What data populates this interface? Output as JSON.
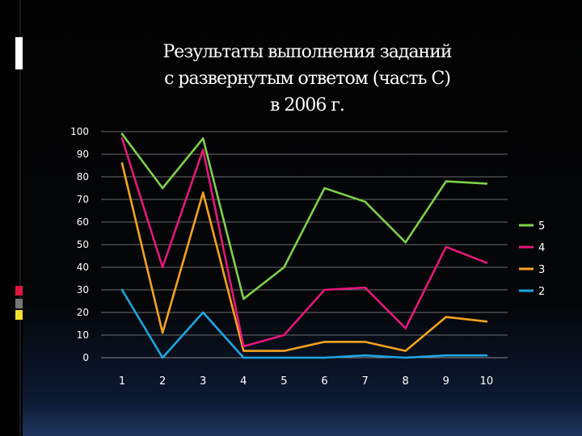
{
  "slide": {
    "title_lines": [
      "Результаты выполнения заданий",
      "с развернутым ответом (часть С)",
      "в 2006 г."
    ]
  },
  "chart_data": {
    "type": "line",
    "title": "",
    "xlabel": "",
    "ylabel": "",
    "categories": [
      "1",
      "2",
      "3",
      "4",
      "5",
      "6",
      "7",
      "8",
      "9",
      "10"
    ],
    "ylim": [
      0,
      100
    ],
    "yticks": [
      0,
      10,
      20,
      30,
      40,
      50,
      60,
      70,
      80,
      90,
      100
    ],
    "grid": true,
    "legend_position": "right",
    "series": [
      {
        "name": "5",
        "color": "#7dd04a",
        "values": [
          99,
          75,
          97,
          26,
          40,
          75,
          69,
          51,
          78,
          77
        ]
      },
      {
        "name": "4",
        "color": "#e6177a",
        "values": [
          97,
          40,
          92,
          5,
          10,
          30,
          31,
          13,
          49,
          42
        ]
      },
      {
        "name": "3",
        "color": "#f5a21e",
        "values": [
          86,
          11,
          73,
          3,
          3,
          7,
          7,
          3,
          18,
          16
        ]
      },
      {
        "name": "2",
        "color": "#1ea6e0",
        "values": [
          30,
          0,
          20,
          0,
          0,
          0,
          1,
          0,
          1,
          1
        ]
      }
    ]
  }
}
